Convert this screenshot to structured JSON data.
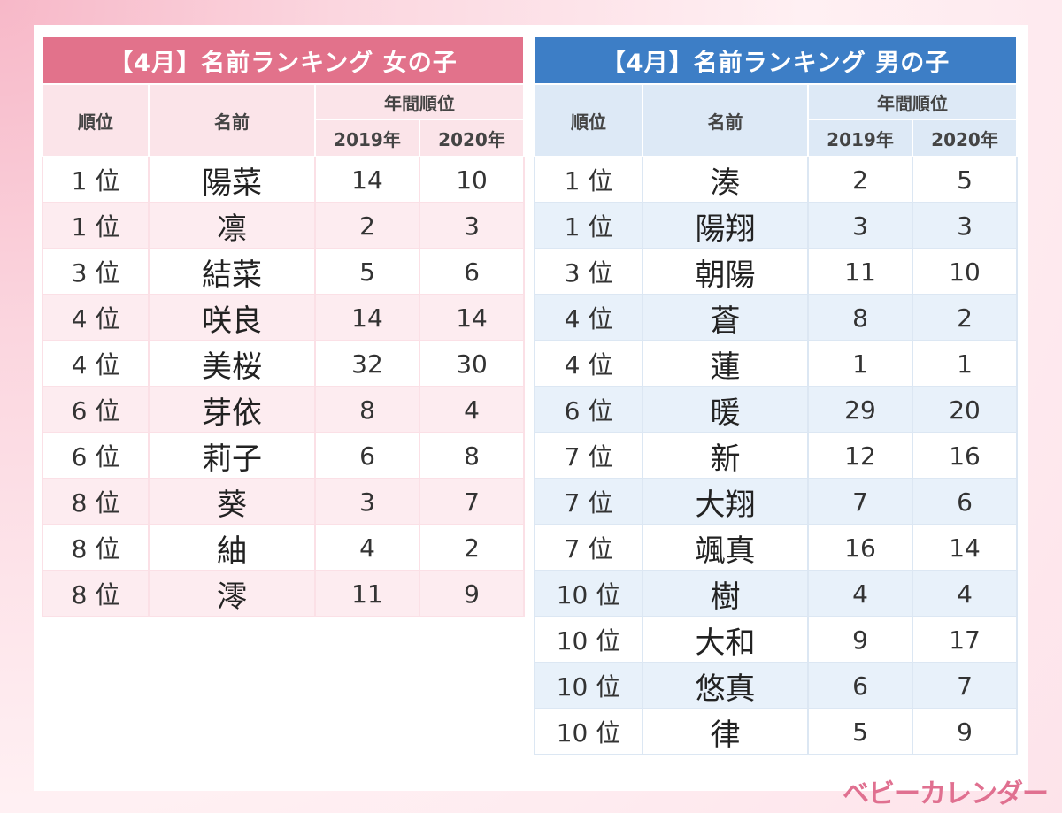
{
  "girls": {
    "title": "【4月】名前ランキング 女の子",
    "headers": {
      "rank": "順位",
      "name": "名前",
      "annual": "年間順位",
      "y2019": "2019年",
      "y2020": "2020年"
    },
    "rows": [
      {
        "rank": "1 位",
        "name": "陽菜",
        "y2019": "14",
        "y2020": "10"
      },
      {
        "rank": "1 位",
        "name": "凛",
        "y2019": "2",
        "y2020": "3"
      },
      {
        "rank": "3 位",
        "name": "結菜",
        "y2019": "5",
        "y2020": "6"
      },
      {
        "rank": "4 位",
        "name": "咲良",
        "y2019": "14",
        "y2020": "14"
      },
      {
        "rank": "4 位",
        "name": "美桜",
        "y2019": "32",
        "y2020": "30"
      },
      {
        "rank": "6 位",
        "name": "芽依",
        "y2019": "8",
        "y2020": "4"
      },
      {
        "rank": "6 位",
        "name": "莉子",
        "y2019": "6",
        "y2020": "8"
      },
      {
        "rank": "8 位",
        "name": "葵",
        "y2019": "3",
        "y2020": "7"
      },
      {
        "rank": "8 位",
        "name": "紬",
        "y2019": "4",
        "y2020": "2"
      },
      {
        "rank": "8 位",
        "name": "澪",
        "y2019": "11",
        "y2020": "9"
      }
    ]
  },
  "boys": {
    "title": "【4月】名前ランキング 男の子",
    "headers": {
      "rank": "順位",
      "name": "名前",
      "annual": "年間順位",
      "y2019": "2019年",
      "y2020": "2020年"
    },
    "rows": [
      {
        "rank": "1 位",
        "name": "湊",
        "y2019": "2",
        "y2020": "5"
      },
      {
        "rank": "1 位",
        "name": "陽翔",
        "y2019": "3",
        "y2020": "3"
      },
      {
        "rank": "3 位",
        "name": "朝陽",
        "y2019": "11",
        "y2020": "10"
      },
      {
        "rank": "4 位",
        "name": "蒼",
        "y2019": "8",
        "y2020": "2"
      },
      {
        "rank": "4 位",
        "name": "蓮",
        "y2019": "1",
        "y2020": "1"
      },
      {
        "rank": "6 位",
        "name": "暖",
        "y2019": "29",
        "y2020": "20"
      },
      {
        "rank": "7 位",
        "name": "新",
        "y2019": "12",
        "y2020": "16"
      },
      {
        "rank": "7 位",
        "name": "大翔",
        "y2019": "7",
        "y2020": "6"
      },
      {
        "rank": "7 位",
        "name": "颯真",
        "y2019": "16",
        "y2020": "14"
      },
      {
        "rank": "10 位",
        "name": "樹",
        "y2019": "4",
        "y2020": "4"
      },
      {
        "rank": "10 位",
        "name": "大和",
        "y2019": "9",
        "y2020": "17"
      },
      {
        "rank": "10 位",
        "name": "悠真",
        "y2019": "6",
        "y2020": "7"
      },
      {
        "rank": "10 位",
        "name": "律",
        "y2019": "5",
        "y2020": "9"
      }
    ]
  },
  "logo": "ベビーカレンダー",
  "colors": {
    "girls_accent": "#e2728b",
    "boys_accent": "#3d7ec6",
    "logo": "#e07090"
  }
}
